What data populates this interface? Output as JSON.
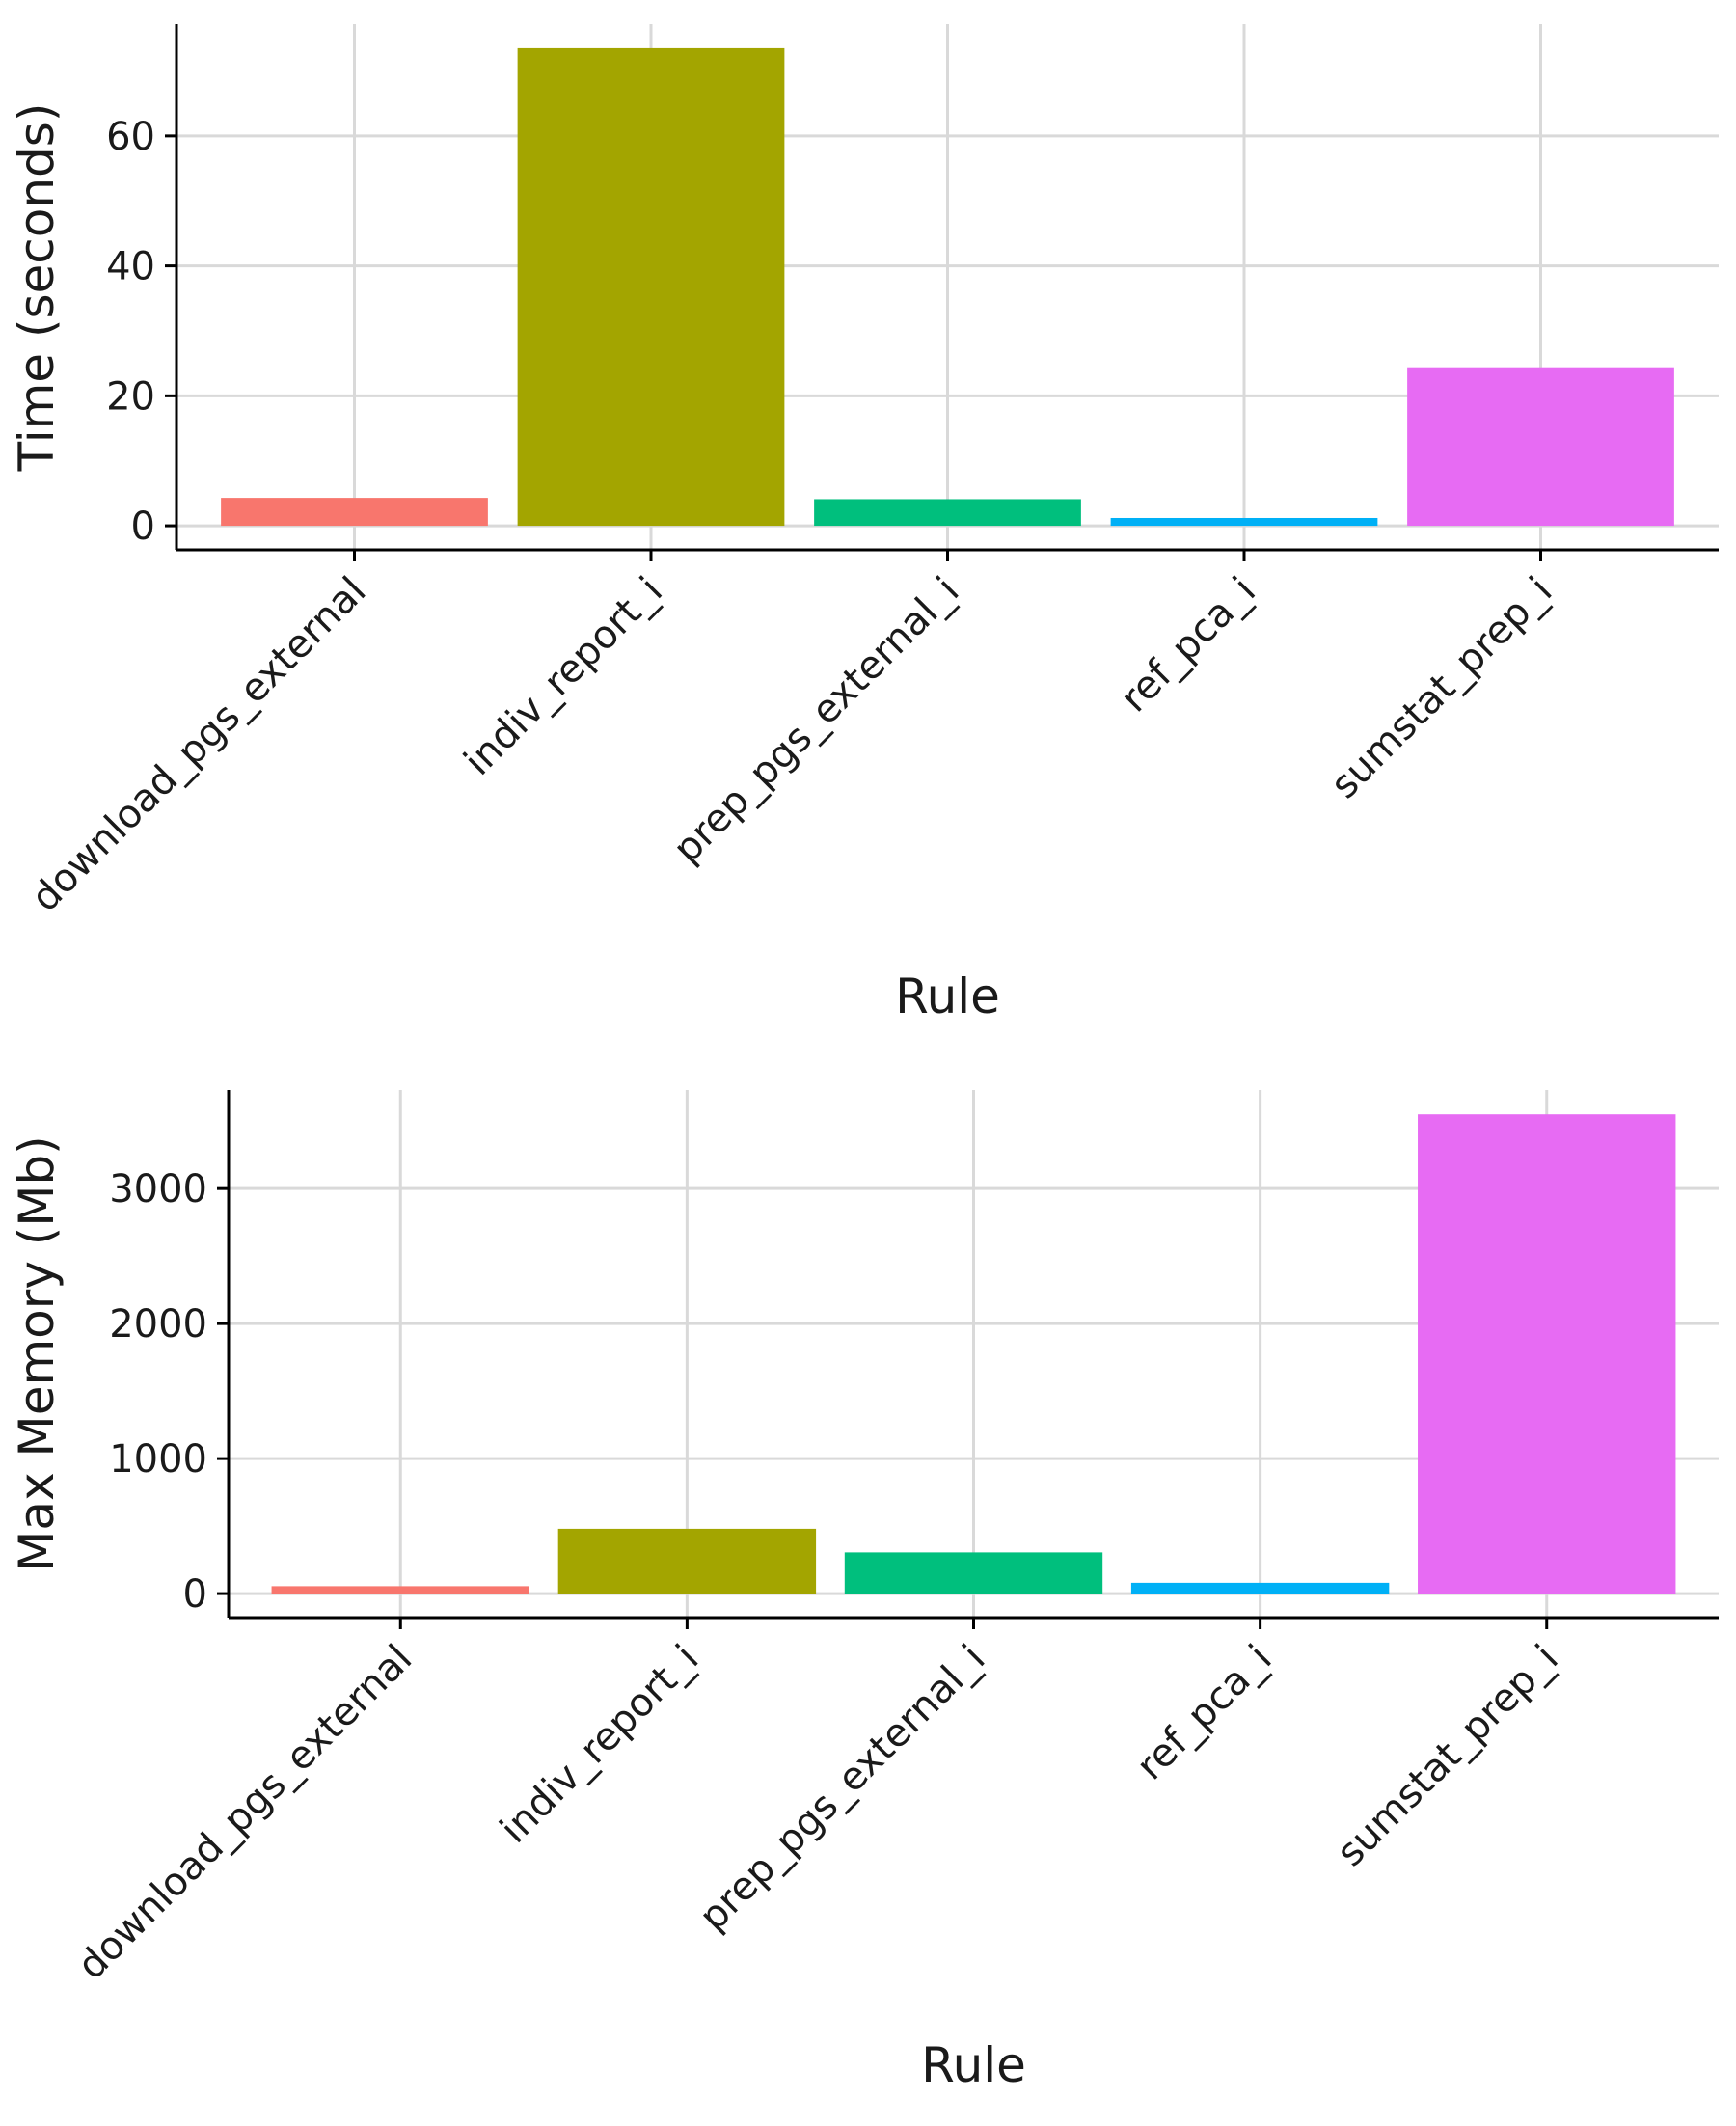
{
  "chart_data": [
    {
      "type": "bar",
      "categories": [
        "download_pgs_external",
        "indiv_report_i",
        "prep_pgs_external_i",
        "ref_pca_i",
        "sumstat_prep_i"
      ],
      "values": [
        4.3,
        73.5,
        4.1,
        1.2,
        24.4
      ],
      "colors": [
        "#F8766D",
        "#A3A500",
        "#00BF7D",
        "#00B0F6",
        "#E76BF3"
      ],
      "xlabel": "Rule",
      "ylabel": "Time (seconds)",
      "yticks": [
        0,
        20,
        40,
        60
      ],
      "ylim": [
        -3.7,
        77.2
      ],
      "grid": true,
      "legend": "none"
    },
    {
      "type": "bar",
      "categories": [
        "download_pgs_external",
        "indiv_report_i",
        "prep_pgs_external_i",
        "ref_pca_i",
        "sumstat_prep_i"
      ],
      "values": [
        55,
        480,
        305,
        80,
        3550
      ],
      "colors": [
        "#F8766D",
        "#A3A500",
        "#00BF7D",
        "#00B0F6",
        "#E76BF3"
      ],
      "xlabel": "Rule",
      "ylabel": "Max Memory (Mb)",
      "yticks": [
        0,
        1000,
        2000,
        3000
      ],
      "ylim": [
        -178,
        3730
      ],
      "grid": true,
      "legend": "none"
    }
  ]
}
